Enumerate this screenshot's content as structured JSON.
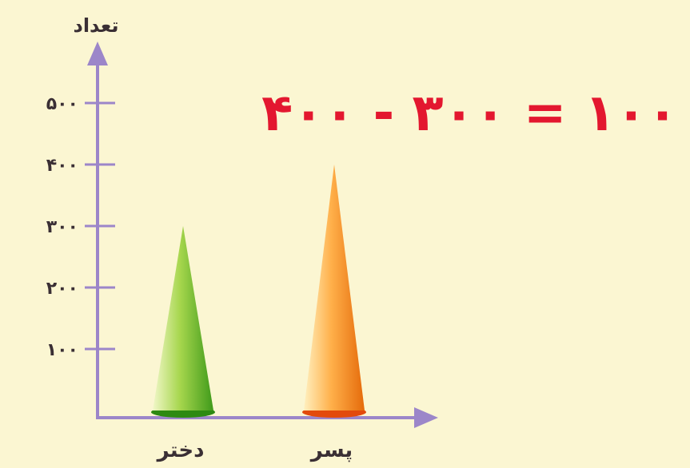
{
  "chart_data": {
    "type": "bar",
    "ylabel": "تعداد",
    "xlabel": "",
    "categories": [
      "دختر",
      "پسر"
    ],
    "values": [
      300,
      400
    ],
    "ylim": [
      0,
      500
    ],
    "y_ticks": [
      100,
      200,
      300,
      400,
      500
    ],
    "y_tick_labels": [
      "۱۰۰",
      "۲۰۰",
      "۳۰۰",
      "۴۰۰",
      "۵۰۰"
    ],
    "bar_shape": "cone",
    "bar_colors": [
      "#5fb42d",
      "#f07a12"
    ],
    "axis_color": "#9c86c9",
    "grid": false,
    "annotation": "۴۰۰ - ۳۰۰ = ۱۰۰"
  }
}
